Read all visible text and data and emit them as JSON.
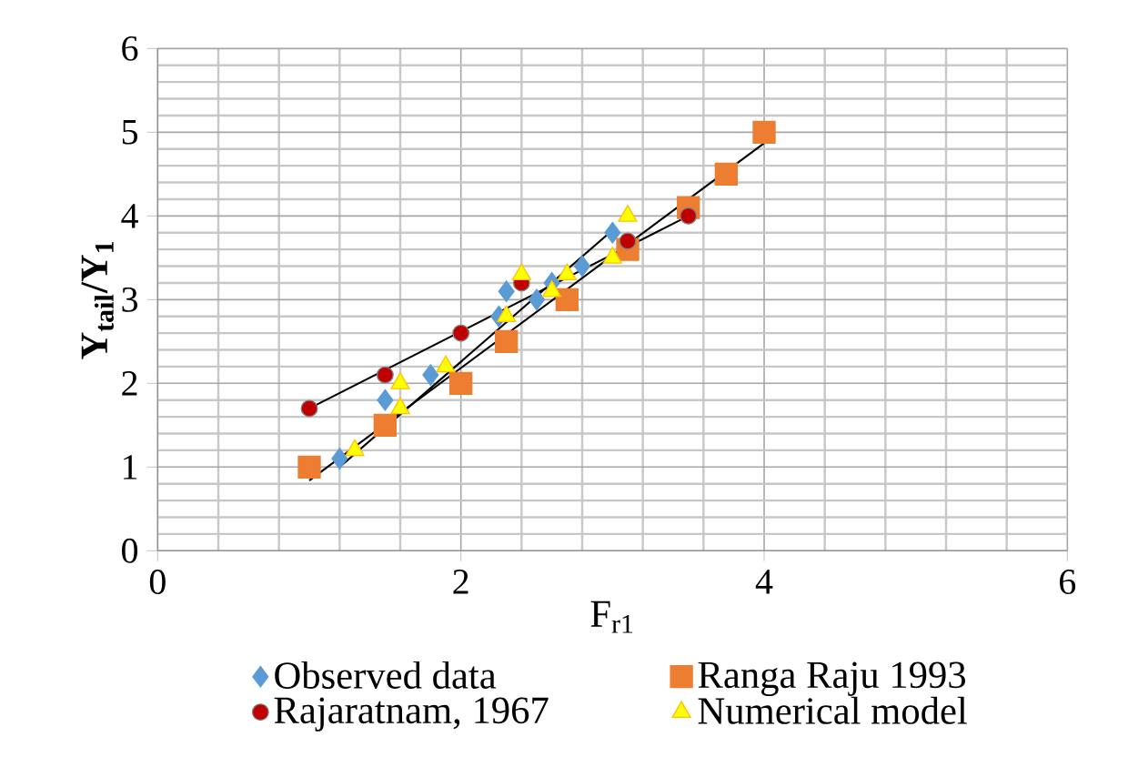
{
  "chart_data": {
    "type": "scatter",
    "xlabel": "F$_{r1}$",
    "ylabel": "Y$_{tail}$/Y$_{1}$",
    "xlim": [
      0,
      6
    ],
    "ylim": [
      0,
      6
    ],
    "xticks": [
      0,
      2,
      4,
      6
    ],
    "yticks": [
      0,
      1,
      2,
      3,
      4,
      5,
      6
    ],
    "grid": true,
    "legend": "bottom",
    "series": [
      {
        "name": "Observed data",
        "color": "#5b9bd5",
        "marker": "diamond",
        "x": [
          1.2,
          1.5,
          1.8,
          2.25,
          2.3,
          2.5,
          2.6,
          2.8,
          3.0
        ],
        "values": [
          1.1,
          1.8,
          2.1,
          2.8,
          3.1,
          3.0,
          3.2,
          3.4,
          3.8
        ]
      },
      {
        "name": "Ranga Raju 1993",
        "color": "#ed7d31",
        "marker": "square",
        "x": [
          1.0,
          1.5,
          2.0,
          2.3,
          2.7,
          3.1,
          3.5,
          3.75,
          4.0
        ],
        "values": [
          1.0,
          1.5,
          2.0,
          2.5,
          3.0,
          3.6,
          4.1,
          4.5,
          5.0
        ]
      },
      {
        "name": "Rajaratnam, 1967",
        "color": "#c00000",
        "marker": "circle",
        "x": [
          1.0,
          1.5,
          2.0,
          2.4,
          3.1,
          3.5
        ],
        "values": [
          1.7,
          2.1,
          2.6,
          3.2,
          3.7,
          4.0
        ]
      },
      {
        "name": "Numerical model",
        "color": "#ffff00",
        "marker": "triangle",
        "x": [
          1.3,
          1.6,
          1.6,
          1.9,
          2.3,
          2.4,
          2.6,
          2.7,
          3.0,
          3.1
        ],
        "values": [
          1.2,
          2.0,
          1.7,
          2.2,
          2.8,
          3.3,
          3.1,
          3.3,
          3.5,
          4.0
        ]
      },
      {
        "type": "line",
        "color": "#000000",
        "marker": "none",
        "x": [
          1.2,
          3.0
        ],
        "values": [
          1.0,
          3.83
        ]
      },
      {
        "type": "line",
        "color": "#000000",
        "marker": "none",
        "x": [
          1.0,
          4.0
        ],
        "values": [
          0.84,
          4.87
        ]
      },
      {
        "type": "line",
        "color": "#000000",
        "marker": "none",
        "x": [
          1.0,
          3.5
        ],
        "values": [
          1.7,
          4.0
        ]
      }
    ]
  }
}
